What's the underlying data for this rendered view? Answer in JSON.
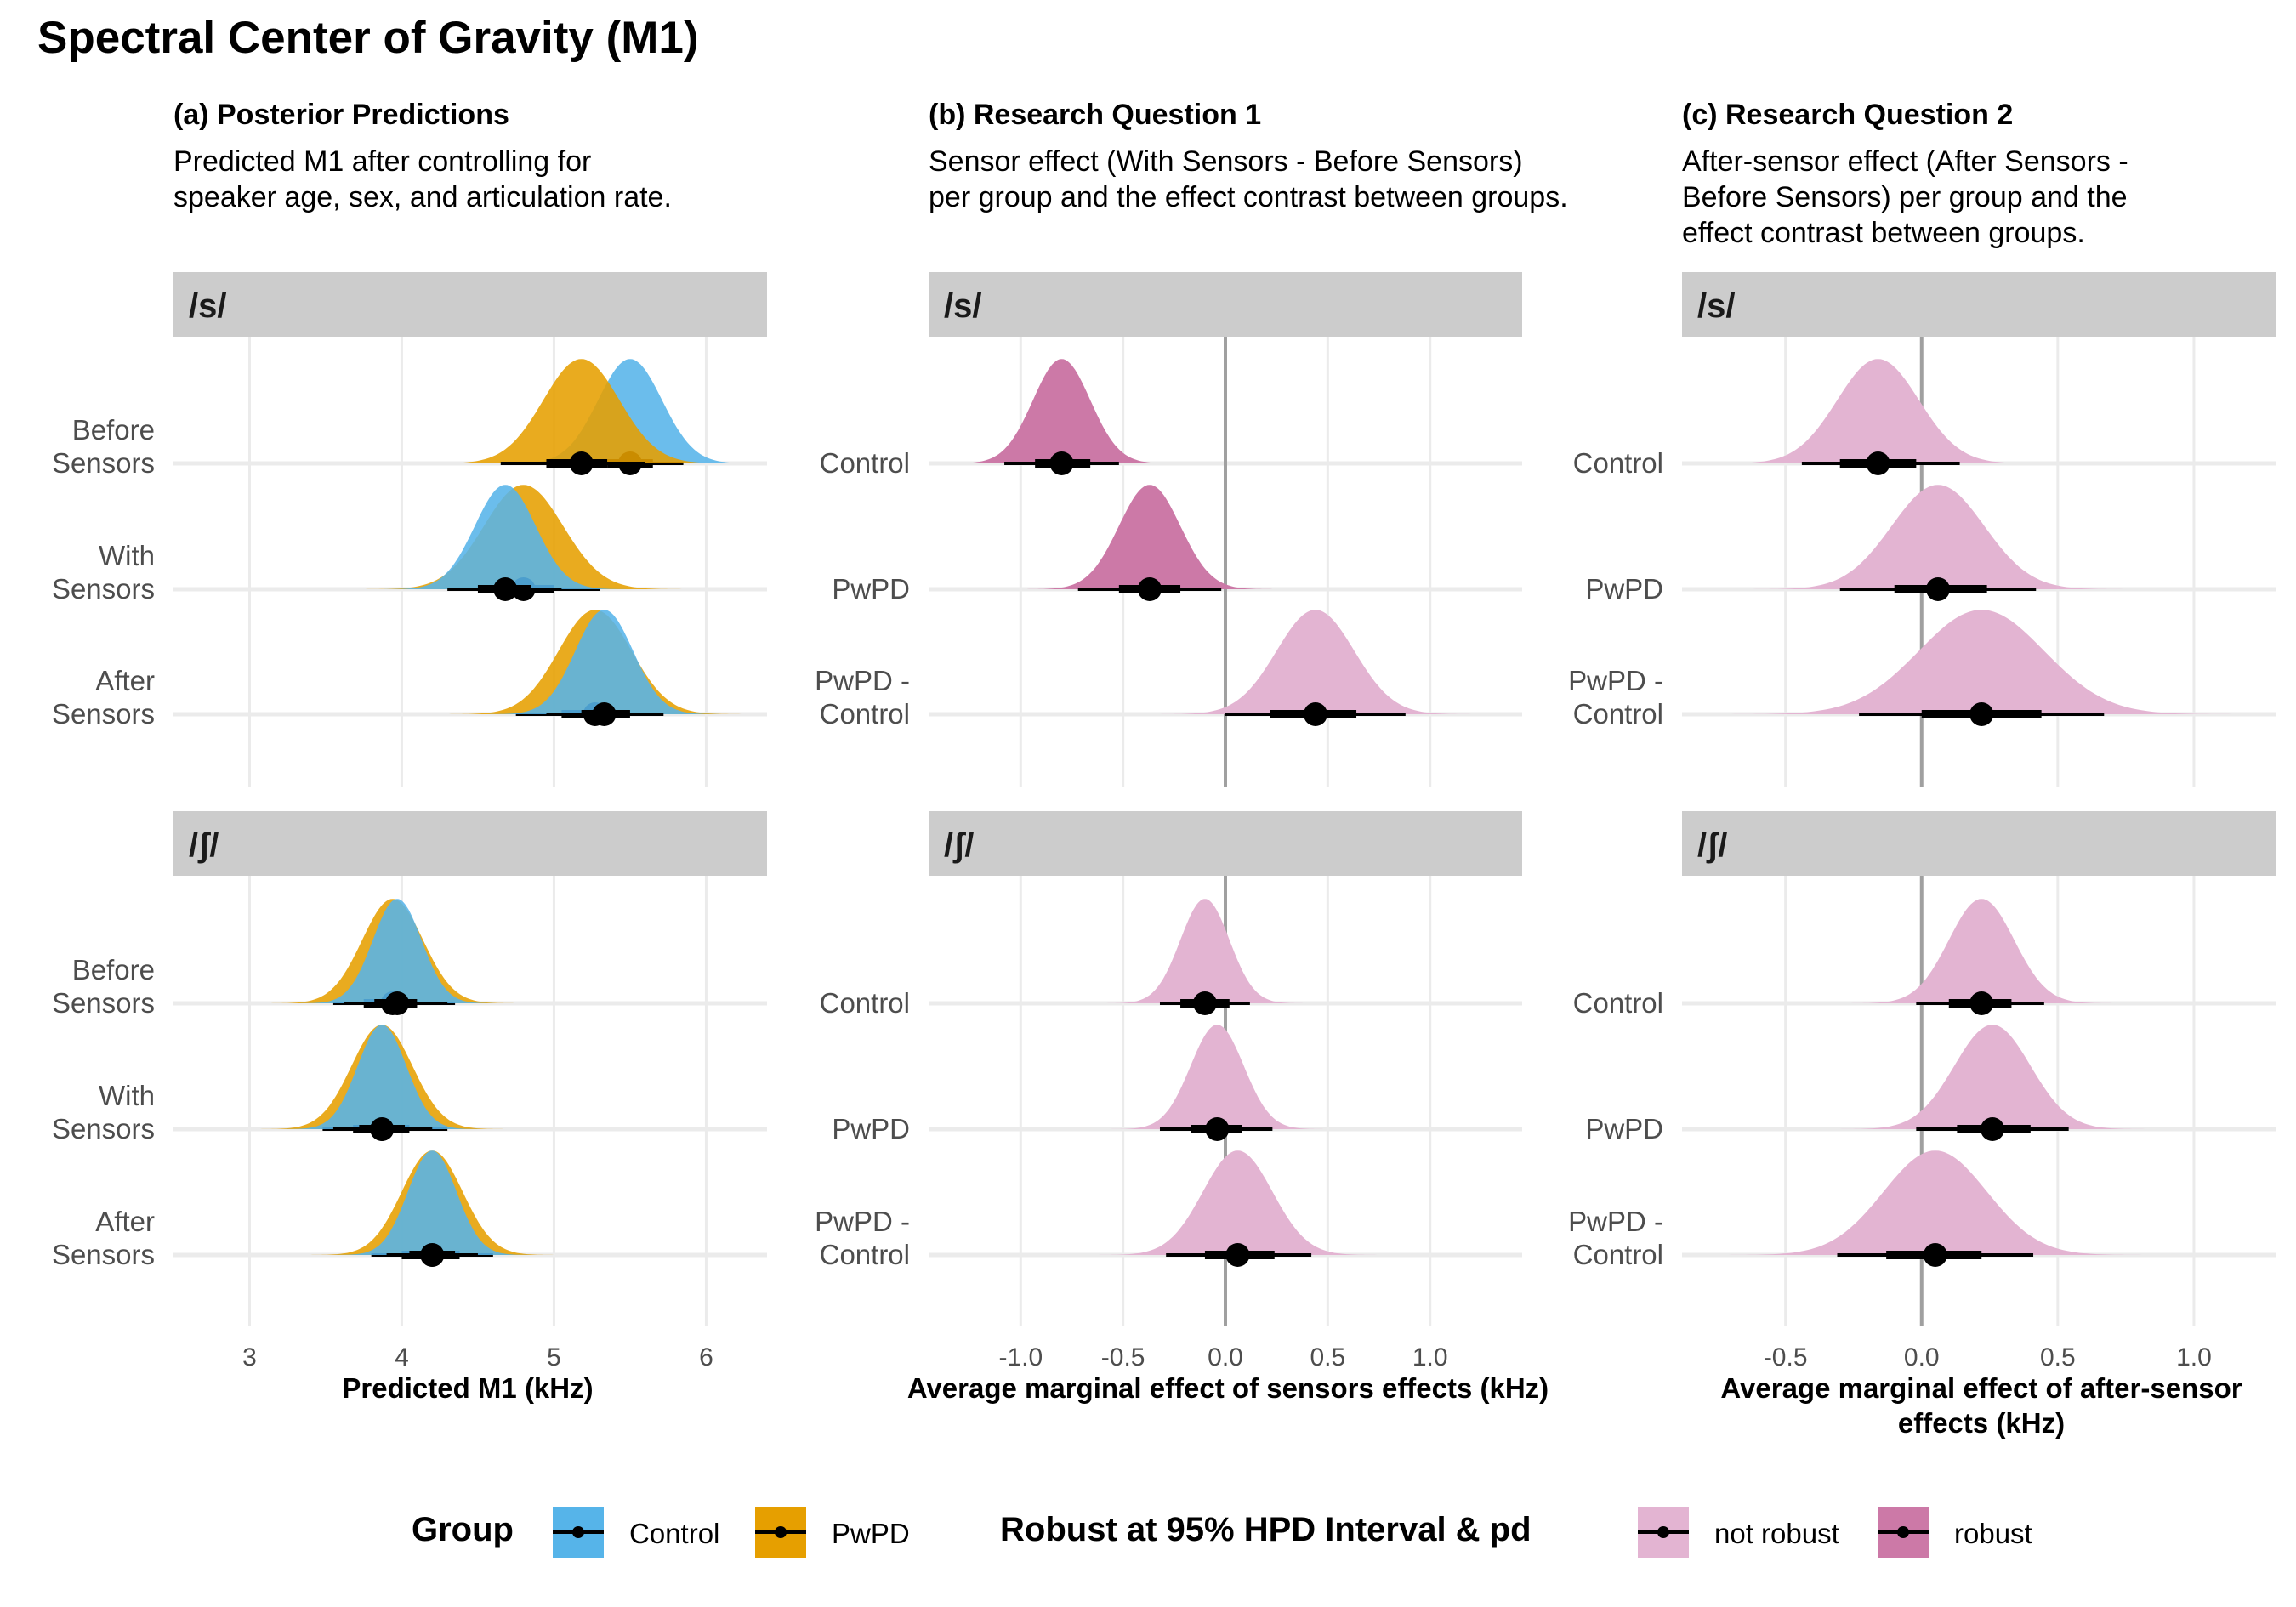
{
  "title": "Spectral Center of Gravity (M1)",
  "colors": {
    "control": "#56B4E9",
    "pwpd": "#E69F00",
    "not_robust": "#E3B4D2",
    "robust": "#CC79A7",
    "strip": "#CCCCCC",
    "grid": "#EBEBEB",
    "zero_line": "#A0A0A0"
  },
  "columns": [
    {
      "title": "(a) Posterior Predictions",
      "subtitle": [
        "Predicted M1 after controlling for",
        "speaker age, sex, and articulation rate."
      ],
      "xlabel": [
        "Predicted M1 (kHz)"
      ]
    },
    {
      "title": "(b) Research Question 1",
      "subtitle": [
        "Sensor effect (With Sensors - Before Sensors)",
        "per group and the effect contrast between groups."
      ],
      "xlabel": [
        "Average marginal effect of sensors effects (kHz)"
      ]
    },
    {
      "title": "(c) Research Question 2",
      "subtitle": [
        "After-sensor effect (After Sensors -",
        "Before Sensors) per group and the",
        "effect contrast between groups."
      ],
      "xlabel": [
        "Average marginal effect of after-sensor",
        "effects (kHz)"
      ]
    }
  ],
  "strips": [
    "/s/",
    "/ʃ/"
  ],
  "legend": {
    "group_title": "Group",
    "group_items": [
      "Control",
      "PwPD"
    ],
    "robust_title": "Robust at 95% HPD Interval & pd",
    "robust_items": [
      "not robust",
      "robust"
    ]
  },
  "chart_data": [
    {
      "type": "halfeye",
      "panel": "(a) Posterior Predictions",
      "xlabel": "Predicted M1 (kHz)",
      "xlim": [
        2.5,
        6.4
      ],
      "xticks": [
        3,
        4,
        5,
        6
      ],
      "ytick_labels": [
        [
          "Before",
          "Sensors"
        ],
        [
          "With",
          "Sensors"
        ],
        [
          "After",
          "Sensors"
        ]
      ],
      "facets": [
        {
          "facet": "/s/",
          "rows": [
            {
              "label": "Before Sensors",
              "group": "Control",
              "median": 5.5,
              "sd": 0.21,
              "i66": [
                5.35,
                5.65
              ],
              "i95": [
                5.1,
                5.85
              ]
            },
            {
              "label": "Before Sensors",
              "group": "PwPD",
              "median": 5.18,
              "sd": 0.25,
              "i66": [
                4.95,
                5.35
              ],
              "i95": [
                4.65,
                5.6
              ]
            },
            {
              "label": "With Sensors",
              "group": "PwPD",
              "median": 4.8,
              "sd": 0.26,
              "i66": [
                4.55,
                5.0
              ],
              "i95": [
                4.4,
                5.3
              ]
            },
            {
              "label": "With Sensors",
              "group": "Control",
              "median": 4.68,
              "sd": 0.2,
              "i66": [
                4.5,
                4.85
              ],
              "i95": [
                4.3,
                5.05
              ]
            },
            {
              "label": "After Sensors",
              "group": "PwPD",
              "median": 5.27,
              "sd": 0.24,
              "i66": [
                5.05,
                5.45
              ],
              "i95": [
                4.75,
                5.7
              ]
            },
            {
              "label": "After Sensors",
              "group": "Control",
              "median": 5.33,
              "sd": 0.19,
              "i66": [
                5.18,
                5.5
              ],
              "i95": [
                4.95,
                5.72
              ]
            }
          ]
        },
        {
          "facet": "/ʃ/",
          "rows": [
            {
              "label": "Before Sensors",
              "group": "PwPD",
              "median": 3.94,
              "sd": 0.2,
              "i66": [
                3.75,
                4.1
              ],
              "i95": [
                3.55,
                4.35
              ]
            },
            {
              "label": "Before Sensors",
              "group": "Control",
              "median": 3.97,
              "sd": 0.16,
              "i66": [
                3.82,
                4.1
              ],
              "i95": [
                3.62,
                4.3
              ]
            },
            {
              "label": "With Sensors",
              "group": "PwPD",
              "median": 3.87,
              "sd": 0.2,
              "i66": [
                3.68,
                4.05
              ],
              "i95": [
                3.48,
                4.3
              ]
            },
            {
              "label": "With Sensors",
              "group": "Control",
              "median": 3.87,
              "sd": 0.16,
              "i66": [
                3.72,
                4.02
              ],
              "i95": [
                3.55,
                4.2
              ]
            },
            {
              "label": "After Sensors",
              "group": "PwPD",
              "median": 4.2,
              "sd": 0.2,
              "i66": [
                4.0,
                4.38
              ],
              "i95": [
                3.8,
                4.6
              ]
            },
            {
              "label": "After Sensors",
              "group": "Control",
              "median": 4.2,
              "sd": 0.16,
              "i66": [
                4.05,
                4.35
              ],
              "i95": [
                3.9,
                4.5
              ]
            }
          ]
        }
      ]
    },
    {
      "type": "halfeye",
      "panel": "(b) Research Question 1",
      "xlabel": "Average marginal effect of sensors effects (kHz)",
      "xlim": [
        -1.45,
        1.45
      ],
      "xticks": [
        -1.0,
        -0.5,
        0.0,
        0.5,
        1.0
      ],
      "xtick_labels": [
        "-1.0",
        "-0.5",
        "0.0",
        "0.5",
        "1.0"
      ],
      "ytick_labels": [
        [
          "Control"
        ],
        [
          "PwPD"
        ],
        [
          "PwPD -",
          "Control"
        ]
      ],
      "facets": [
        {
          "facet": "/s/",
          "rows": [
            {
              "label": "Control",
              "robust": true,
              "median": -0.8,
              "sd": 0.14,
              "i66": [
                -0.93,
                -0.66
              ],
              "i95": [
                -1.08,
                -0.52
              ]
            },
            {
              "label": "PwPD",
              "robust": true,
              "median": -0.37,
              "sd": 0.15,
              "i66": [
                -0.52,
                -0.22
              ],
              "i95": [
                -0.72,
                -0.02
              ]
            },
            {
              "label": "PwPD - Control",
              "robust": false,
              "median": 0.44,
              "sd": 0.19,
              "i66": [
                0.22,
                0.64
              ],
              "i95": [
                0.0,
                0.88
              ]
            }
          ]
        },
        {
          "facet": "/ʃ/",
          "rows": [
            {
              "label": "Control",
              "robust": false,
              "median": -0.1,
              "sd": 0.12,
              "i66": [
                -0.22,
                0.02
              ],
              "i95": [
                -0.32,
                0.12
              ]
            },
            {
              "label": "PwPD",
              "robust": false,
              "median": -0.04,
              "sd": 0.13,
              "i66": [
                -0.17,
                0.08
              ],
              "i95": [
                -0.32,
                0.23
              ]
            },
            {
              "label": "PwPD - Control",
              "robust": false,
              "median": 0.06,
              "sd": 0.17,
              "i66": [
                -0.1,
                0.24
              ],
              "i95": [
                -0.29,
                0.42
              ]
            }
          ]
        }
      ]
    },
    {
      "type": "halfeye",
      "panel": "(c) Research Question 2",
      "xlabel": "Average marginal effect of after-sensor effects (kHz)",
      "xlim": [
        -0.88,
        1.3
      ],
      "xticks": [
        -0.5,
        0.0,
        0.5,
        1.0
      ],
      "xtick_labels": [
        "-0.5",
        "0.0",
        "0.5",
        "1.0"
      ],
      "ytick_labels": [
        [
          "Control"
        ],
        [
          "PwPD"
        ],
        [
          "PwPD -",
          "Control"
        ]
      ],
      "facets": [
        {
          "facet": "/s/",
          "rows": [
            {
              "label": "Control",
              "robust": false,
              "median": -0.16,
              "sd": 0.15,
              "i66": [
                -0.3,
                -0.02
              ],
              "i95": [
                -0.44,
                0.14
              ]
            },
            {
              "label": "PwPD",
              "robust": false,
              "median": 0.06,
              "sd": 0.17,
              "i66": [
                -0.1,
                0.24
              ],
              "i95": [
                -0.3,
                0.42
              ]
            },
            {
              "label": "PwPD - Control",
              "robust": false,
              "median": 0.22,
              "sd": 0.23,
              "i66": [
                0.0,
                0.44
              ],
              "i95": [
                -0.23,
                0.67
              ]
            }
          ]
        },
        {
          "facet": "/ʃ/",
          "rows": [
            {
              "label": "Control",
              "robust": false,
              "median": 0.22,
              "sd": 0.12,
              "i66": [
                0.1,
                0.33
              ],
              "i95": [
                -0.02,
                0.45
              ]
            },
            {
              "label": "PwPD",
              "robust": false,
              "median": 0.26,
              "sd": 0.14,
              "i66": [
                0.13,
                0.4
              ],
              "i95": [
                -0.02,
                0.54
              ]
            },
            {
              "label": "PwPD - Control",
              "robust": false,
              "median": 0.05,
              "sd": 0.19,
              "i66": [
                -0.13,
                0.22
              ],
              "i95": [
                -0.31,
                0.41
              ]
            }
          ]
        }
      ]
    }
  ]
}
